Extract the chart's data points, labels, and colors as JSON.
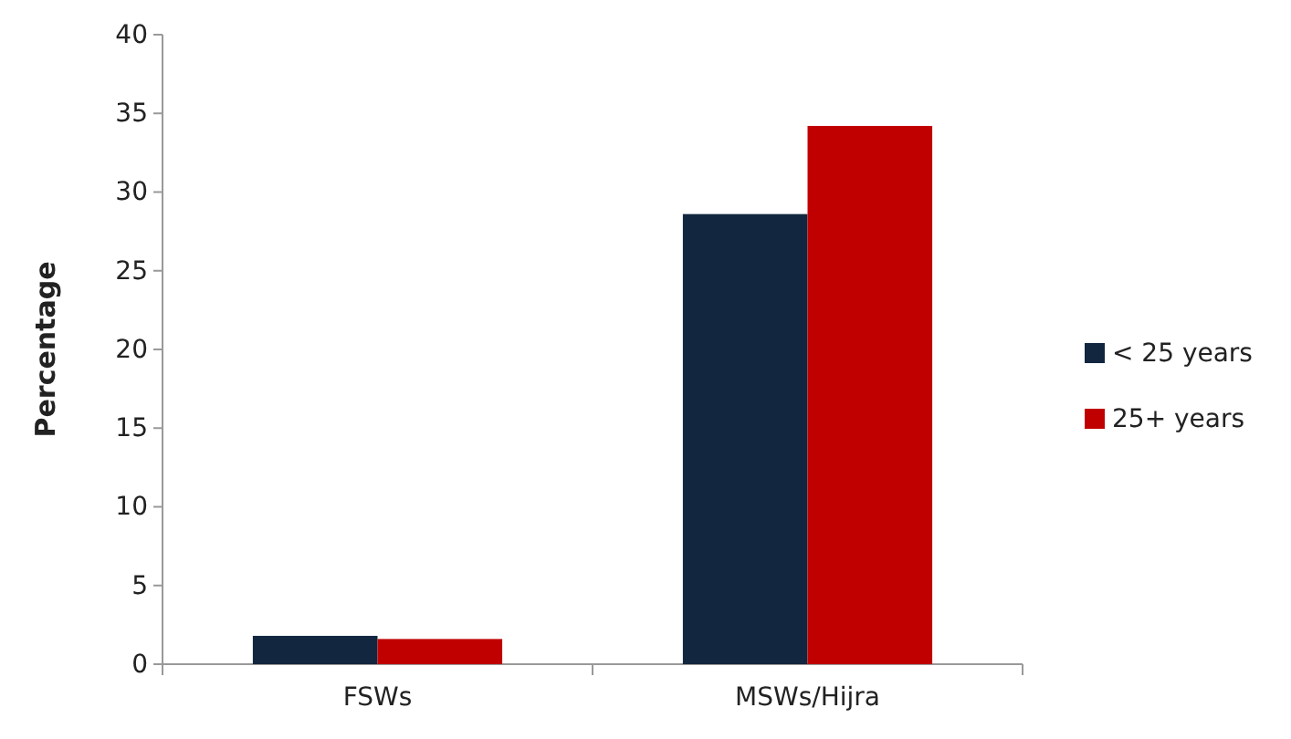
{
  "chart_data": {
    "type": "bar",
    "ylabel": "Percentage",
    "categories": [
      "FSWs",
      "MSWs/Hijra"
    ],
    "series": [
      {
        "name": "< 25 years",
        "color": "#12263f",
        "values": [
          1.8,
          28.6
        ]
      },
      {
        "name": "25+ years",
        "color": "#c00000",
        "values": [
          1.6,
          34.2
        ]
      }
    ],
    "ylim": [
      0,
      40
    ],
    "yticks": [
      0,
      5,
      10,
      15,
      20,
      25,
      30,
      35,
      40
    ],
    "grid": false,
    "legend": "right"
  }
}
